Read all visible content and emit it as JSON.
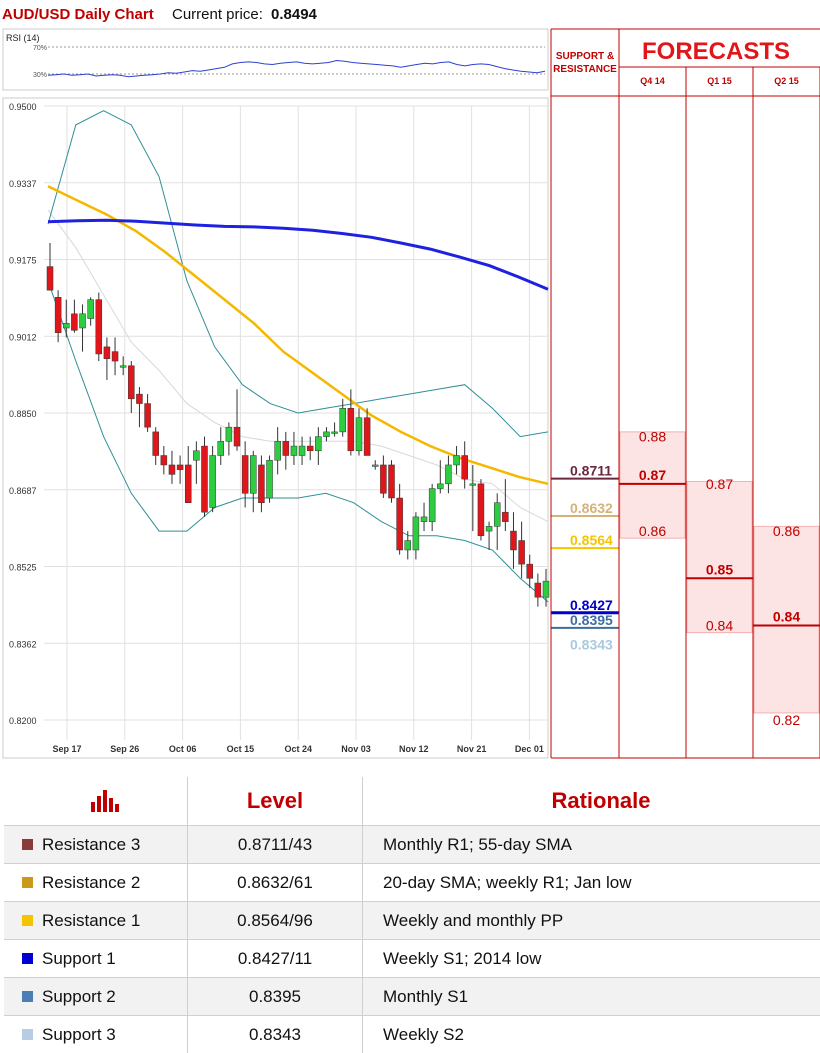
{
  "header": {
    "title": "AUD/USD Daily Chart",
    "price_label": "Current price:",
    "price_value": "0.8494"
  },
  "colors": {
    "red": "#c00000",
    "up_candle": "#2ecc40",
    "down_candle": "#e0161b",
    "sma200": "#1e22e0",
    "sma55": "#f5b800",
    "bollinger": "#2f8f96",
    "sma20": "#d8d8d8",
    "res3": "#6b2740",
    "res2": "#d4b37a",
    "res1": "#f5c400",
    "sup1": "#0000c8",
    "sup2": "#3d6e9e",
    "sup3": "#a9c9de",
    "forecast_fill": "#fde4e4"
  },
  "chart_data": [
    {
      "type": "candlestick",
      "title": "AUD/USD Daily Chart",
      "ylim": [
        0.82,
        0.95
      ],
      "y_ticks": [
        "0.9500",
        "0.9337",
        "0.9175",
        "0.9012",
        "0.8850",
        "0.8687",
        "0.8525",
        "0.8362",
        "0.8200"
      ],
      "x_ticks": [
        "Sep 17",
        "Sep 26",
        "Oct 06",
        "Oct 15",
        "Oct 24",
        "Nov 03",
        "Nov 12",
        "Nov 21",
        "Dec 01"
      ],
      "candles": [
        {
          "o": 0.916,
          "h": 0.921,
          "l": 0.911,
          "c": 0.911
        },
        {
          "o": 0.9095,
          "h": 0.911,
          "l": 0.9,
          "c": 0.902
        },
        {
          "o": 0.903,
          "h": 0.909,
          "l": 0.901,
          "c": 0.904
        },
        {
          "o": 0.906,
          "h": 0.909,
          "l": 0.902,
          "c": 0.9025
        },
        {
          "o": 0.903,
          "h": 0.908,
          "l": 0.898,
          "c": 0.906
        },
        {
          "o": 0.905,
          "h": 0.9095,
          "l": 0.9035,
          "c": 0.909
        },
        {
          "o": 0.909,
          "h": 0.9105,
          "l": 0.896,
          "c": 0.8975
        },
        {
          "o": 0.899,
          "h": 0.901,
          "l": 0.892,
          "c": 0.8965
        },
        {
          "o": 0.898,
          "h": 0.901,
          "l": 0.893,
          "c": 0.896
        },
        {
          "o": 0.895,
          "h": 0.897,
          "l": 0.893,
          "c": 0.895
        },
        {
          "o": 0.895,
          "h": 0.896,
          "l": 0.885,
          "c": 0.888
        },
        {
          "o": 0.889,
          "h": 0.8905,
          "l": 0.882,
          "c": 0.887
        },
        {
          "o": 0.887,
          "h": 0.889,
          "l": 0.881,
          "c": 0.882
        },
        {
          "o": 0.881,
          "h": 0.882,
          "l": 0.874,
          "c": 0.876
        },
        {
          "o": 0.876,
          "h": 0.878,
          "l": 0.872,
          "c": 0.874
        },
        {
          "o": 0.874,
          "h": 0.877,
          "l": 0.87,
          "c": 0.872
        },
        {
          "o": 0.874,
          "h": 0.876,
          "l": 0.87,
          "c": 0.873
        },
        {
          "o": 0.874,
          "h": 0.878,
          "l": 0.866,
          "c": 0.866
        },
        {
          "o": 0.875,
          "h": 0.879,
          "l": 0.87,
          "c": 0.877
        },
        {
          "o": 0.878,
          "h": 0.88,
          "l": 0.863,
          "c": 0.864
        },
        {
          "o": 0.865,
          "h": 0.878,
          "l": 0.864,
          "c": 0.876
        },
        {
          "o": 0.876,
          "h": 0.882,
          "l": 0.874,
          "c": 0.879
        },
        {
          "o": 0.879,
          "h": 0.883,
          "l": 0.876,
          "c": 0.882
        },
        {
          "o": 0.882,
          "h": 0.89,
          "l": 0.877,
          "c": 0.878
        },
        {
          "o": 0.876,
          "h": 0.879,
          "l": 0.865,
          "c": 0.868
        },
        {
          "o": 0.868,
          "h": 0.877,
          "l": 0.864,
          "c": 0.876
        },
        {
          "o": 0.874,
          "h": 0.876,
          "l": 0.864,
          "c": 0.866
        },
        {
          "o": 0.867,
          "h": 0.876,
          "l": 0.866,
          "c": 0.875
        },
        {
          "o": 0.875,
          "h": 0.882,
          "l": 0.872,
          "c": 0.879
        },
        {
          "o": 0.879,
          "h": 0.881,
          "l": 0.873,
          "c": 0.876
        },
        {
          "o": 0.876,
          "h": 0.881,
          "l": 0.874,
          "c": 0.878
        },
        {
          "o": 0.876,
          "h": 0.88,
          "l": 0.874,
          "c": 0.878
        },
        {
          "o": 0.878,
          "h": 0.88,
          "l": 0.875,
          "c": 0.877
        },
        {
          "o": 0.877,
          "h": 0.882,
          "l": 0.874,
          "c": 0.88
        },
        {
          "o": 0.88,
          "h": 0.882,
          "l": 0.879,
          "c": 0.881
        },
        {
          "o": 0.881,
          "h": 0.883,
          "l": 0.88,
          "c": 0.881
        },
        {
          "o": 0.881,
          "h": 0.888,
          "l": 0.88,
          "c": 0.886
        },
        {
          "o": 0.886,
          "h": 0.89,
          "l": 0.876,
          "c": 0.877
        },
        {
          "o": 0.877,
          "h": 0.886,
          "l": 0.876,
          "c": 0.884
        },
        {
          "o": 0.884,
          "h": 0.886,
          "l": 0.876,
          "c": 0.876
        },
        {
          "o": 0.874,
          "h": 0.875,
          "l": 0.873,
          "c": 0.874
        },
        {
          "o": 0.874,
          "h": 0.876,
          "l": 0.867,
          "c": 0.868
        },
        {
          "o": 0.874,
          "h": 0.875,
          "l": 0.866,
          "c": 0.867
        },
        {
          "o": 0.867,
          "h": 0.87,
          "l": 0.855,
          "c": 0.856
        },
        {
          "o": 0.856,
          "h": 0.86,
          "l": 0.854,
          "c": 0.858
        },
        {
          "o": 0.856,
          "h": 0.864,
          "l": 0.854,
          "c": 0.863
        },
        {
          "o": 0.862,
          "h": 0.866,
          "l": 0.86,
          "c": 0.863
        },
        {
          "o": 0.862,
          "h": 0.87,
          "l": 0.86,
          "c": 0.869
        },
        {
          "o": 0.869,
          "h": 0.875,
          "l": 0.868,
          "c": 0.87
        },
        {
          "o": 0.87,
          "h": 0.876,
          "l": 0.868,
          "c": 0.874
        },
        {
          "o": 0.874,
          "h": 0.878,
          "l": 0.872,
          "c": 0.876
        },
        {
          "o": 0.876,
          "h": 0.879,
          "l": 0.869,
          "c": 0.871
        },
        {
          "o": 0.87,
          "h": 0.874,
          "l": 0.86,
          "c": 0.87
        },
        {
          "o": 0.87,
          "h": 0.871,
          "l": 0.858,
          "c": 0.859
        },
        {
          "o": 0.86,
          "h": 0.862,
          "l": 0.856,
          "c": 0.861
        },
        {
          "o": 0.861,
          "h": 0.868,
          "l": 0.856,
          "c": 0.866
        },
        {
          "o": 0.864,
          "h": 0.871,
          "l": 0.86,
          "c": 0.862
        },
        {
          "o": 0.86,
          "h": 0.864,
          "l": 0.852,
          "c": 0.856
        },
        {
          "o": 0.858,
          "h": 0.862,
          "l": 0.85,
          "c": 0.853
        },
        {
          "o": 0.853,
          "h": 0.855,
          "l": 0.848,
          "c": 0.85
        },
        {
          "o": 0.849,
          "h": 0.851,
          "l": 0.844,
          "c": 0.846
        },
        {
          "o": 0.846,
          "h": 0.852,
          "l": 0.844,
          "c": 0.8494
        }
      ],
      "sma200": [
        0.9255,
        0.9257,
        0.9258,
        0.9256,
        0.9252,
        0.9248,
        0.9245,
        0.9244,
        0.9241,
        0.9237,
        0.923,
        0.9222,
        0.921,
        0.9197,
        0.918,
        0.9162,
        0.9138,
        0.9112
      ],
      "sma55": [
        0.933,
        0.93,
        0.927,
        0.9235,
        0.919,
        0.914,
        0.909,
        0.904,
        0.898,
        0.8935,
        0.889,
        0.8845,
        0.881,
        0.878,
        0.8755,
        0.8735,
        0.8715,
        0.87
      ],
      "bb_upper": [
        0.925,
        0.946,
        0.949,
        0.946,
        0.935,
        0.913,
        0.899,
        0.891,
        0.887,
        0.885,
        0.886,
        0.887,
        0.888,
        0.889,
        0.89,
        0.891,
        0.886,
        0.88,
        0.881
      ],
      "bb_lower": [
        0.913,
        0.896,
        0.88,
        0.868,
        0.86,
        0.86,
        0.865,
        0.867,
        0.867,
        0.867,
        0.868,
        0.866,
        0.862,
        0.859,
        0.859,
        0.858,
        0.856,
        0.85,
        0.845
      ],
      "sma20": [
        0.928,
        0.92,
        0.91,
        0.9,
        0.894,
        0.887,
        0.883,
        0.88,
        0.879,
        0.879,
        0.879,
        0.879,
        0.878,
        0.876,
        0.874,
        0.871,
        0.87,
        0.865,
        0.862
      ],
      "levels": [
        {
          "key": "res3",
          "value": 0.8711,
          "label": "0.8711"
        },
        {
          "key": "res2",
          "value": 0.8632,
          "label": "0.8632"
        },
        {
          "key": "res1",
          "value": 0.8564,
          "label": "0.8564"
        },
        {
          "key": "sup1",
          "value": 0.8427,
          "label": "0.8427"
        },
        {
          "key": "sup2",
          "value": 0.8395,
          "label": "0.8395"
        },
        {
          "key": "sup3",
          "value": 0.8343,
          "label": "0.8343"
        }
      ]
    },
    {
      "type": "line",
      "title": "RSI (14)",
      "y_ticks": [
        "70%",
        "30%"
      ],
      "values": [
        28,
        29,
        30,
        28,
        29,
        30,
        27,
        28,
        29,
        28,
        26,
        27,
        28,
        29,
        30,
        32,
        31,
        33,
        35,
        34,
        36,
        38,
        40,
        45,
        47,
        48,
        47,
        45,
        44,
        46,
        47,
        48,
        46,
        45,
        46,
        47,
        50,
        49,
        47,
        46,
        45,
        44,
        43,
        42,
        40,
        42,
        44,
        46,
        45,
        47,
        48,
        44,
        42,
        44,
        45,
        44,
        41,
        38,
        36,
        34,
        33,
        32,
        34
      ]
    }
  ],
  "forecasts": {
    "title": "FORECASTS",
    "sr_header": "SUPPORT & RESISTANCE",
    "columns": [
      {
        "label": "Q4 14",
        "boxes": [
          {
            "top": 0.881,
            "bottom": 0.8585,
            "labels": [
              {
                "v": 0.88,
                "t": "0.88",
                "bold": false
              },
              {
                "v": 0.86,
                "t": "0.86",
                "bold": false
              }
            ]
          },
          {
            "level": 0.87,
            "t": "0.87",
            "bold": true
          }
        ]
      },
      {
        "label": "Q1 15",
        "boxes": [
          {
            "top": 0.8705,
            "bottom": 0.8385,
            "labels": [
              {
                "v": 0.87,
                "t": "0.87",
                "bold": false
              },
              {
                "v": 0.84,
                "t": "0.84",
                "bold": false
              }
            ]
          },
          {
            "level": 0.85,
            "t": "0.85",
            "bold": true
          }
        ]
      },
      {
        "label": "Q2 15",
        "boxes": [
          {
            "top": 0.861,
            "bottom": 0.8215,
            "labels": [
              {
                "v": 0.86,
                "t": "0.86",
                "bold": false
              },
              {
                "v": 0.82,
                "t": "0.82",
                "bold": false
              }
            ]
          },
          {
            "level": 0.84,
            "t": "0.84",
            "bold": true
          }
        ]
      }
    ]
  },
  "table": {
    "header_level": "Level",
    "header_rationale": "Rationale",
    "rows": [
      {
        "name": "Resistance 3",
        "level": "0.8711/43",
        "rationale": "Monthly R1; 55-day SMA",
        "color": "#8b3a3a"
      },
      {
        "name": "Resistance 2",
        "level": "0.8632/61",
        "rationale": "20-day SMA; weekly R1; Jan low",
        "color": "#c99a1a"
      },
      {
        "name": "Resistance 1",
        "level": "0.8564/96",
        "rationale": "Weekly and monthly PP",
        "color": "#f5c400"
      },
      {
        "name": "Support 1",
        "level": "0.8427/11",
        "rationale": "Weekly S1; 2014 low",
        "color": "#0000d0"
      },
      {
        "name": "Support 2",
        "level": "0.8395",
        "rationale": "Monthly S1",
        "color": "#4a7fb5"
      },
      {
        "name": "Support 3",
        "level": "0.8343",
        "rationale": "Weekly S2",
        "color": "#b8cce4"
      }
    ]
  }
}
